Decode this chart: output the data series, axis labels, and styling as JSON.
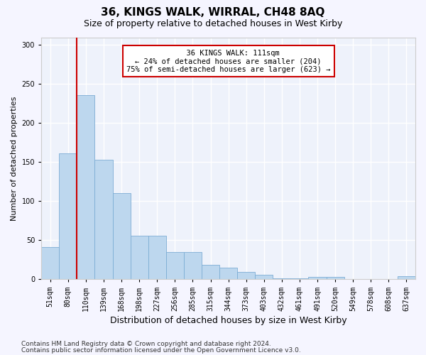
{
  "title1": "36, KINGS WALK, WIRRAL, CH48 8AQ",
  "title2": "Size of property relative to detached houses in West Kirby",
  "xlabel": "Distribution of detached houses by size in West Kirby",
  "ylabel": "Number of detached properties",
  "categories": [
    "51sqm",
    "80sqm",
    "110sqm",
    "139sqm",
    "168sqm",
    "198sqm",
    "227sqm",
    "256sqm",
    "285sqm",
    "315sqm",
    "344sqm",
    "373sqm",
    "403sqm",
    "432sqm",
    "461sqm",
    "491sqm",
    "520sqm",
    "549sqm",
    "578sqm",
    "608sqm",
    "637sqm"
  ],
  "values": [
    41,
    161,
    236,
    153,
    110,
    56,
    56,
    35,
    35,
    18,
    15,
    9,
    6,
    1,
    1,
    3,
    3,
    0,
    0,
    0,
    4
  ],
  "bar_color": "#bdd7ee",
  "bar_edge_color": "#7dadd4",
  "vline_color": "#cc0000",
  "vline_x_index": 2,
  "annotation_line1": "  36 KINGS WALK: 111sqm",
  "annotation_line2": "← 24% of detached houses are smaller (204)",
  "annotation_line3": "75% of semi-detached houses are larger (623) →",
  "annotation_box_color": "#ffffff",
  "annotation_box_edge": "#cc0000",
  "ylim": [
    0,
    310
  ],
  "yticks": [
    0,
    50,
    100,
    150,
    200,
    250,
    300
  ],
  "footer1": "Contains HM Land Registry data © Crown copyright and database right 2024.",
  "footer2": "Contains public sector information licensed under the Open Government Licence v3.0.",
  "bg_color": "#eef2fb",
  "grid_color": "#ffffff",
  "title1_fontsize": 11,
  "title2_fontsize": 9,
  "xlabel_fontsize": 9,
  "ylabel_fontsize": 8,
  "tick_fontsize": 7,
  "annotation_fontsize": 7.5,
  "footer_fontsize": 6.5
}
